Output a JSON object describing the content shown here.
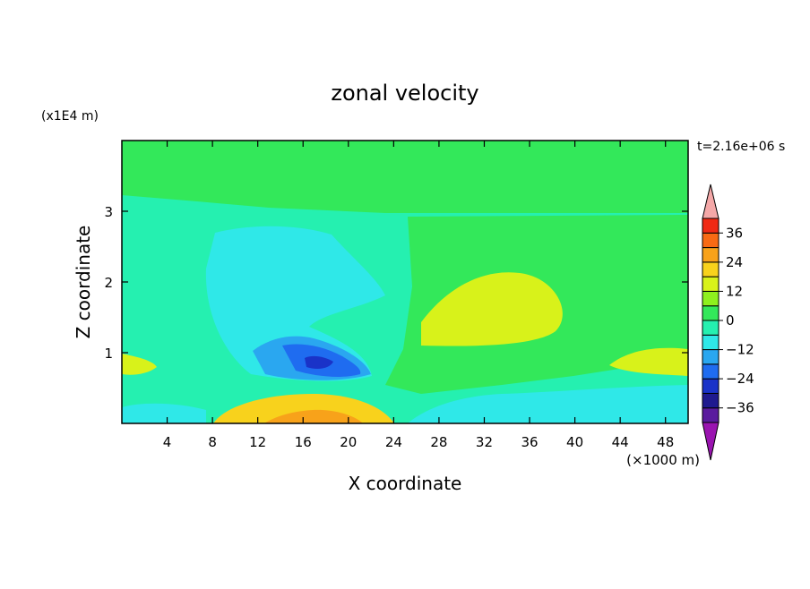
{
  "chart_data": {
    "type": "heatmap",
    "title": "zonal velocity",
    "xlabel": "X coordinate",
    "ylabel": "Z coordinate",
    "x_unit": "(×1000 m)",
    "y_unit": "(x1E4 m)",
    "time_label": "t=2.16e+06 s",
    "xlim": [
      0,
      50
    ],
    "ylim": [
      0,
      4
    ],
    "x_ticks": [
      4,
      8,
      12,
      16,
      20,
      24,
      28,
      32,
      36,
      40,
      44,
      48
    ],
    "y_ticks": [
      1,
      2,
      3
    ],
    "colorbar": {
      "tick_labels": [
        "36",
        "24",
        "12",
        "0",
        "−12",
        "−24",
        "−36"
      ],
      "tick_values": [
        36,
        24,
        12,
        0,
        -12,
        -24,
        -36
      ],
      "levels": [
        -42,
        -36,
        -30,
        -24,
        -18,
        -12,
        -6,
        0,
        6,
        12,
        18,
        24,
        30,
        36,
        42
      ],
      "colors": [
        "#5a1b9e",
        "#1f1a8f",
        "#1a33c8",
        "#1f6cf0",
        "#2aa7f0",
        "#2fe8e8",
        "#25f0b0",
        "#33e85a",
        "#8ef01e",
        "#d8f21a",
        "#f8d21c",
        "#f8a21a",
        "#f86a14",
        "#f02a14",
        "#f4a8a8"
      ],
      "under_color": "#9a14b0",
      "over_color": "#f4a8a8"
    },
    "regions": [
      {
        "label": "background",
        "value": -3
      },
      {
        "label": "upper green band",
        "value": 3
      },
      {
        "label": "right bulge",
        "value": 4
      },
      {
        "label": "yellow-green core",
        "value": 10
      },
      {
        "label": "right lower yellow",
        "value": 10
      },
      {
        "label": "left lower yellow",
        "value": 9
      },
      {
        "label": "cyan column",
        "value": -8
      },
      {
        "label": "light blue zone",
        "value": -13
      },
      {
        "label": "blue core",
        "value": -22
      },
      {
        "label": "dark blue core",
        "value": -28
      },
      {
        "label": "surface yellow",
        "value": 14
      },
      {
        "label": "surface max",
        "value": 18
      },
      {
        "label": "near surface cyan",
        "value": -8
      }
    ]
  }
}
